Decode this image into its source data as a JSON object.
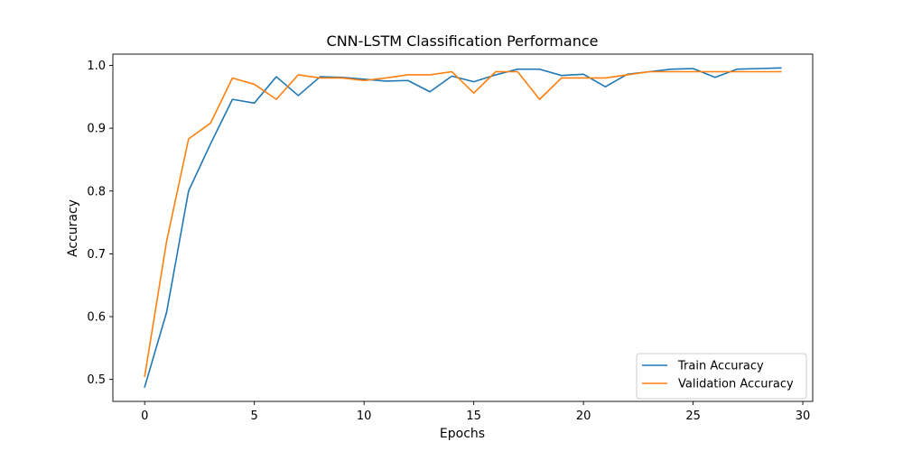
{
  "chart_data": {
    "type": "line",
    "title": "CNN-LSTM Classification Performance",
    "xlabel": "Epochs",
    "ylabel": "Accuracy",
    "xlim": [
      -1.45,
      30.45
    ],
    "ylim": [
      0.465,
      1.018
    ],
    "xticks": [
      0,
      5,
      10,
      15,
      20,
      25,
      30
    ],
    "yticks": [
      0.5,
      0.6,
      0.7,
      0.8,
      0.9,
      1.0
    ],
    "ytick_labels": [
      "0.5",
      "0.6",
      "0.7",
      "0.8",
      "0.9",
      "1.0"
    ],
    "legend_position": "lower-right",
    "grid": false,
    "x": [
      0,
      1,
      2,
      3,
      4,
      5,
      6,
      7,
      8,
      9,
      10,
      11,
      12,
      13,
      14,
      15,
      16,
      17,
      18,
      19,
      20,
      21,
      22,
      23,
      24,
      25,
      26,
      27,
      28,
      29
    ],
    "series": [
      {
        "name": "Train Accuracy",
        "color": "#1f77b4",
        "values": [
          0.488,
          0.607,
          0.8,
          0.875,
          0.946,
          0.94,
          0.982,
          0.952,
          0.982,
          0.981,
          0.978,
          0.975,
          0.976,
          0.958,
          0.983,
          0.974,
          0.985,
          0.994,
          0.994,
          0.984,
          0.986,
          0.966,
          0.986,
          0.99,
          0.994,
          0.995,
          0.981,
          0.994,
          0.995,
          0.996
        ]
      },
      {
        "name": "Validation Accuracy",
        "color": "#ff7f0e",
        "values": [
          0.505,
          0.72,
          0.883,
          0.908,
          0.98,
          0.97,
          0.946,
          0.985,
          0.98,
          0.98,
          0.976,
          0.98,
          0.985,
          0.985,
          0.99,
          0.956,
          0.99,
          0.99,
          0.946,
          0.98,
          0.98,
          0.98,
          0.985,
          0.99,
          0.99,
          0.99,
          0.99,
          0.99,
          0.99,
          0.99
        ]
      }
    ]
  }
}
